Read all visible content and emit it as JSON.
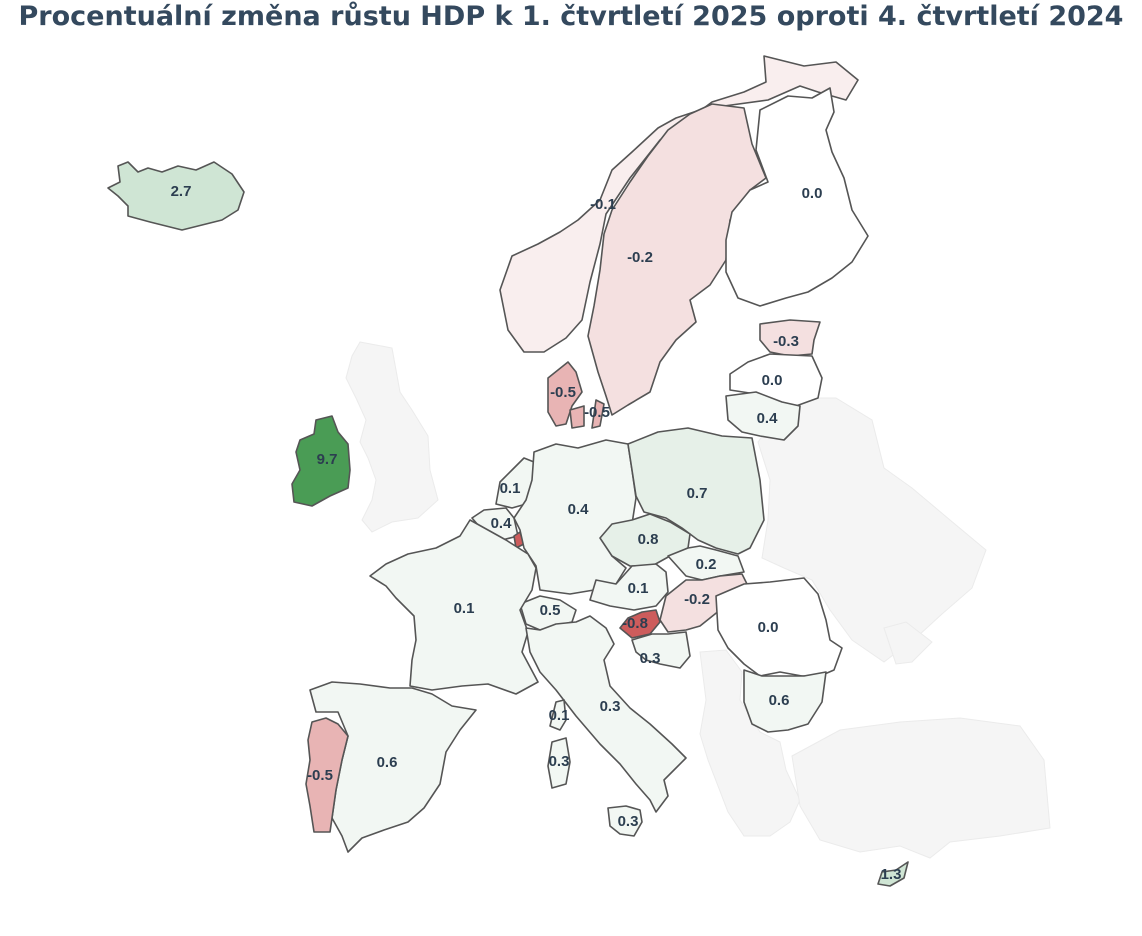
{
  "title": "Procentuální změna růstu HDP k 1. čtvrtletí 2025 oproti 4. čtvrtletí 2024",
  "colors": {
    "negative_strong": "#cd5c5c",
    "negative_mid": "#e8b4b4",
    "negative_light": "#f4e0e0",
    "negative_faint": "#f9eeee",
    "neutral": "#ffffff",
    "positive_faint": "#f2f7f3",
    "positive_light": "#e6f0e8",
    "positive_mid": "#cfe5d4",
    "positive_strong": "#4a9c55",
    "no_data": "#f5f5f5",
    "title": "#34495e"
  },
  "map_data": {
    "type": "choropleth",
    "metric_unit": "%",
    "regions": [
      {
        "name": "Island",
        "value": 2.7
      },
      {
        "name": "Norsko",
        "value": -0.1
      },
      {
        "name": "Švédsko",
        "value": -0.2
      },
      {
        "name": "Finsko",
        "value": 0.0
      },
      {
        "name": "Estonsko",
        "value": -0.3
      },
      {
        "name": "Lotyšsko",
        "value": 0.0
      },
      {
        "name": "Litva",
        "value": 0.4
      },
      {
        "name": "Dánsko",
        "value": -0.5
      },
      {
        "name": "Dánsko (ostrovy)",
        "value": -0.5
      },
      {
        "name": "Irsko",
        "value": 9.7
      },
      {
        "name": "Nizozemsko",
        "value": 0.1
      },
      {
        "name": "Belgie",
        "value": 0.4
      },
      {
        "name": "Lucembursko",
        "value": null
      },
      {
        "name": "Německo",
        "value": 0.4
      },
      {
        "name": "Polsko",
        "value": 0.7
      },
      {
        "name": "Česko",
        "value": 0.8
      },
      {
        "name": "Slovensko",
        "value": 0.2
      },
      {
        "name": "Rakousko",
        "value": 0.1
      },
      {
        "name": "Maďarsko",
        "value": -0.2
      },
      {
        "name": "Slovinsko",
        "value": -0.8
      },
      {
        "name": "Chorvatsko",
        "value": 0.3
      },
      {
        "name": "Švýcarsko",
        "value": 0.5
      },
      {
        "name": "Francie",
        "value": 0.1
      },
      {
        "name": "Itálie",
        "value": 0.3
      },
      {
        "name": "Korsika",
        "value": 0.1
      },
      {
        "name": "Sardinie",
        "value": 0.3
      },
      {
        "name": "Sicílie",
        "value": 0.3
      },
      {
        "name": "Rumunsko",
        "value": 0.0
      },
      {
        "name": "Bulharsko",
        "value": 0.6
      },
      {
        "name": "Španělsko",
        "value": 0.6
      },
      {
        "name": "Portugalsko",
        "value": -0.5
      },
      {
        "name": "Kypr",
        "value": 1.3
      }
    ]
  }
}
